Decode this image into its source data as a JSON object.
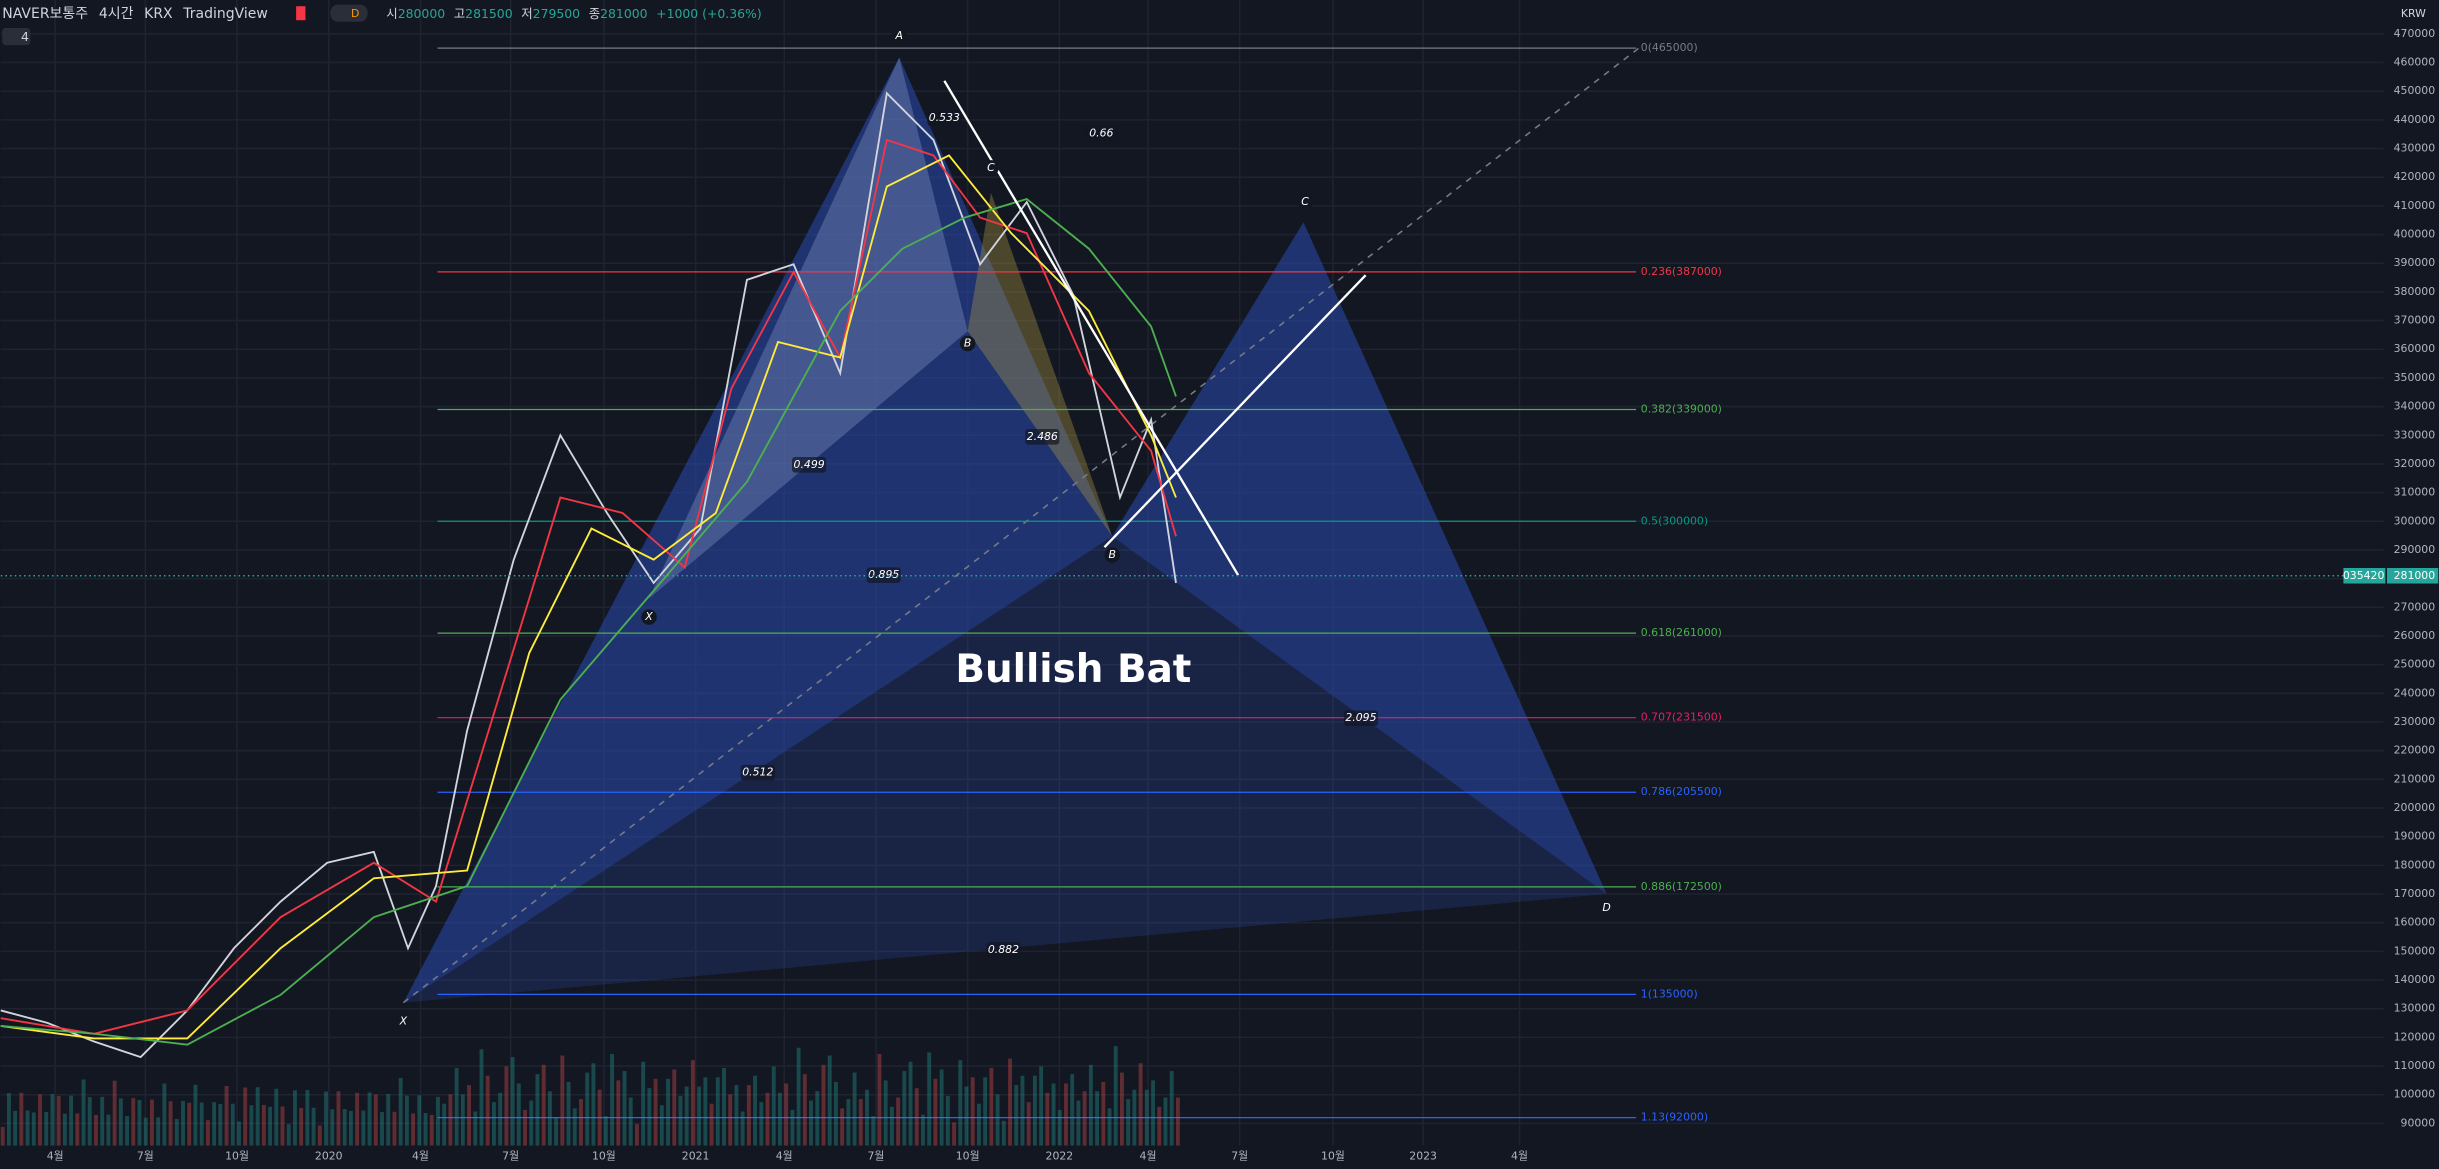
{
  "header": {
    "symbol": "NAVER보통주",
    "interval": "4시간",
    "exchange": "KRX",
    "platform": "TradingView",
    "style": "D",
    "open_label": "시",
    "open": 280000,
    "high_label": "고",
    "high": 281500,
    "low_label": "저",
    "low": 279500,
    "close_label": "종",
    "close": 281000,
    "change": "+1000 (+0.36%)",
    "indicator_count": "4"
  },
  "price_axis": {
    "currency": "KRW",
    "ylim": [
      74100,
      481800
    ],
    "ticks": [
      90000,
      100000,
      110000,
      120000,
      130000,
      140000,
      150000,
      160000,
      170000,
      180000,
      190000,
      200000,
      210000,
      220000,
      230000,
      240000,
      250000,
      260000,
      270000,
      280000,
      290000,
      300000,
      310000,
      320000,
      330000,
      340000,
      350000,
      360000,
      370000,
      380000,
      390000,
      400000,
      410000,
      420000,
      430000,
      440000,
      450000,
      460000,
      470000
    ],
    "last_price": 281000,
    "last_tag": "035420"
  },
  "time_axis": [
    "4월",
    "7월",
    "10월",
    "2020",
    "4월",
    "7월",
    "10월",
    "2021",
    "4월",
    "7월",
    "10월",
    "2022",
    "4월",
    "7월",
    "10월",
    "2023",
    "4월"
  ],
  "fib_levels": [
    {
      "label": "0(465000)",
      "price": 465000,
      "color": "#787b86"
    },
    {
      "label": "0.236(387000)",
      "price": 387000,
      "color": "#f23645"
    },
    {
      "label": "0.382(339000)",
      "price": 339000,
      "color": "#4caf50"
    },
    {
      "label": "0.5(300000)",
      "price": 300000,
      "color": "#089981"
    },
    {
      "label": "0.618(261000)",
      "price": 261000,
      "color": "#4caf50"
    },
    {
      "label": "0.707(231500)",
      "price": 231500,
      "color": "#e91e63"
    },
    {
      "label": "0.786(205500)",
      "price": 205500,
      "color": "#2962ff"
    },
    {
      "label": "0.886(172500)",
      "price": 172500,
      "color": "#4caf50"
    },
    {
      "label": "1(135000)",
      "price": 135000,
      "color": "#2962ff"
    },
    {
      "label": "1.13(92000)",
      "price": 92000,
      "color": "#2962ff"
    }
  ],
  "pattern": {
    "name": "Bullish Bat",
    "points": [
      "A",
      "C",
      "B",
      "C",
      "B",
      "X",
      "X",
      "D"
    ],
    "ratios": [
      "0.533",
      "0.66",
      "0.499",
      "2.486",
      "0.895",
      "0.512",
      "2.095",
      "0.882"
    ]
  }
}
